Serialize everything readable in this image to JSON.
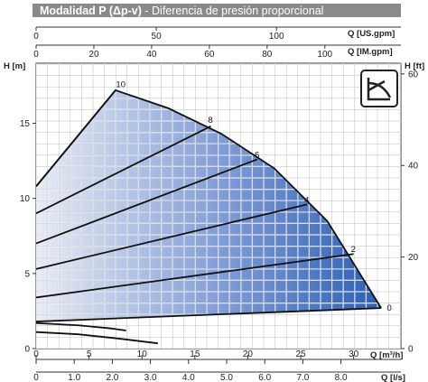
{
  "title": {
    "mode": "Modalidad P (Δp-v)",
    "separator": " - ",
    "desc": "Diferencia de presión proporcional"
  },
  "chart_data": {
    "type": "line",
    "title": "Modalidad P (Δp-v) - Diferencia de presión proporcional",
    "axes": {
      "x_bottom_m3h": {
        "label": "Q [m³/h]",
        "range": [
          0,
          30.5
        ],
        "ticks": [
          0,
          5,
          10,
          15,
          20,
          25,
          30
        ]
      },
      "x_bottom_ls": {
        "label": "Q [l/s]",
        "ticks": [
          "0",
          "1.0",
          "2.0",
          "3.0",
          "4.0",
          "5.0",
          "6.0",
          "7.0",
          "8.0"
        ]
      },
      "x_top_usgpm": {
        "label": "Q [US.gpm]",
        "ticks": [
          0,
          50,
          100
        ]
      },
      "x_top_imgpm": {
        "label": "Q [IM.gpm]",
        "ticks": [
          0,
          20,
          40,
          60,
          80,
          100
        ]
      },
      "y_left_m": {
        "label": "H [m]",
        "range": [
          0,
          19
        ],
        "ticks": [
          0,
          5,
          10,
          15
        ]
      },
      "y_right_ft": {
        "label": "H [ft]",
        "ticks": [
          0,
          20,
          40,
          60
        ]
      }
    },
    "grid": true,
    "legend": "none",
    "max_curve": [
      [
        0,
        10.8
      ],
      [
        7.5,
        17.2
      ],
      [
        12.5,
        16
      ],
      [
        17.5,
        14.3
      ],
      [
        22.5,
        12
      ],
      [
        27.5,
        8.5
      ],
      [
        32.6,
        2.7
      ]
    ],
    "series": [
      {
        "name": "10",
        "label_at": [
          7.8,
          17.6
        ],
        "values": [
          [
            0,
            10.8
          ],
          [
            7.5,
            17.2
          ]
        ]
      },
      {
        "name": "8",
        "label_at": [
          16.5,
          15.2
        ],
        "values": [
          [
            0,
            9.0
          ],
          [
            16.5,
            14.8
          ]
        ]
      },
      {
        "name": "6",
        "label_at": [
          20.9,
          12.9
        ],
        "values": [
          [
            0,
            7.0
          ],
          [
            20.9,
            12.6
          ]
        ]
      },
      {
        "name": "4",
        "label_at": [
          25.6,
          9.9
        ],
        "values": [
          [
            0,
            5.3
          ],
          [
            25.6,
            9.6
          ]
        ]
      },
      {
        "name": "2",
        "label_at": [
          30.0,
          6.6
        ],
        "values": [
          [
            0,
            3.4
          ],
          [
            30.0,
            6.3
          ]
        ]
      },
      {
        "name": "0",
        "label_at": [
          33.4,
          2.7
        ],
        "values": [
          [
            0,
            1.8
          ],
          [
            32.6,
            2.7
          ]
        ]
      }
    ],
    "lower_curves": [
      [
        [
          0,
          1.7
        ],
        [
          4,
          1.55
        ],
        [
          7,
          1.35
        ],
        [
          8.5,
          1.2
        ]
      ],
      [
        [
          0,
          1.1
        ],
        [
          4,
          0.95
        ],
        [
          8,
          0.65
        ],
        [
          11.5,
          0.35
        ]
      ]
    ],
    "colors": {
      "fill_dark": "#2b5fb5",
      "fill_light": "#e8ecf5",
      "title_bg": "#8a8a8a",
      "line": "#111111",
      "grid": "#ffffff"
    },
    "icon": "pump-mode-icon"
  }
}
